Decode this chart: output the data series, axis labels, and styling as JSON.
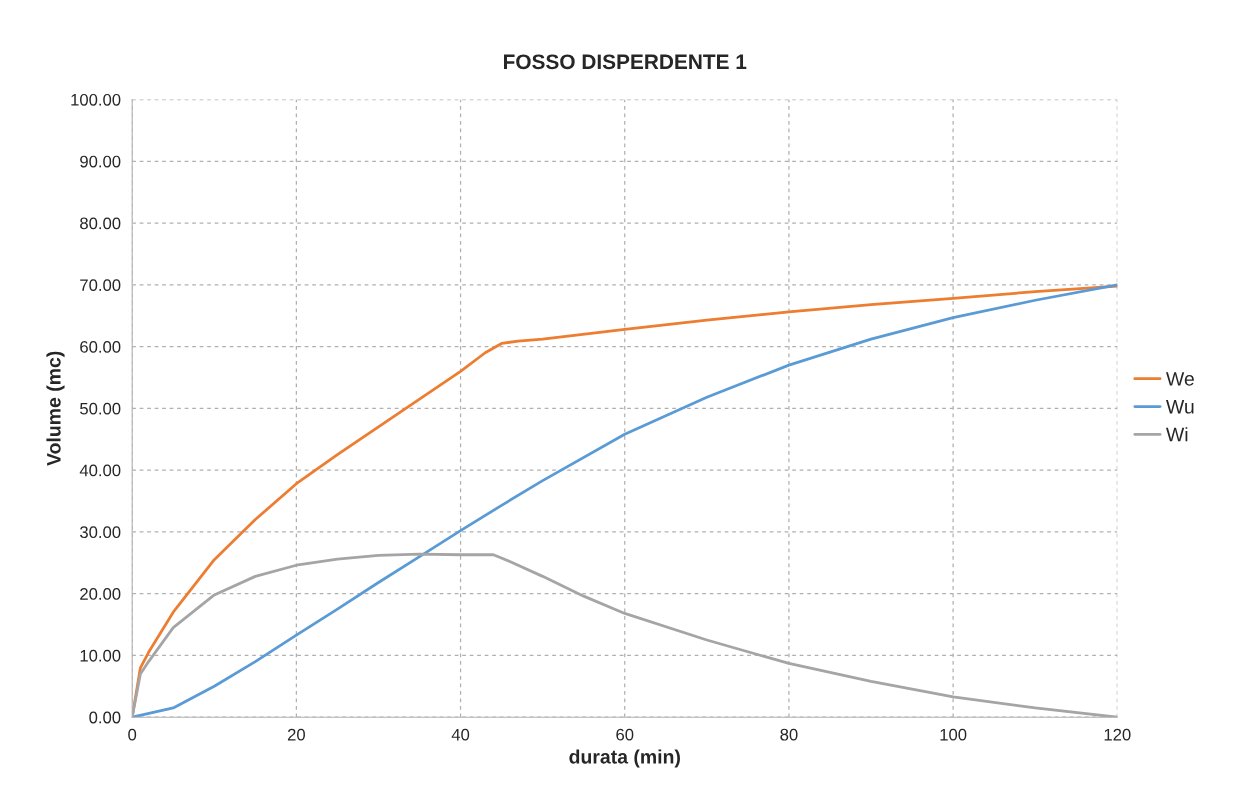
{
  "chart_data": {
    "type": "line",
    "title": "FOSSO DISPERDENTE 1",
    "xlabel": "durata (min)",
    "ylabel": "Volume (mc)",
    "xlim": [
      0,
      120
    ],
    "xticks": [
      0,
      20,
      40,
      60,
      80,
      100,
      120
    ],
    "ylim": [
      0,
      100
    ],
    "yticks": [
      {
        "value": 0,
        "label": "0.00"
      },
      {
        "value": 10,
        "label": "10.00"
      },
      {
        "value": 20,
        "label": "20.00"
      },
      {
        "value": 30,
        "label": "30.00"
      },
      {
        "value": 40,
        "label": "40.00"
      },
      {
        "value": 50,
        "label": "50.00"
      },
      {
        "value": 60,
        "label": "60.00"
      },
      {
        "value": 70,
        "label": "70.00"
      },
      {
        "value": 80,
        "label": "80.00"
      },
      {
        "value": 90,
        "label": "90.00"
      },
      {
        "value": 100,
        "label": "100.00"
      }
    ],
    "grid": true,
    "legend": "right",
    "marker": "none",
    "line_style": "solid",
    "series": [
      {
        "name": "We",
        "color": "#ed7d31",
        "x": [
          0,
          1,
          2,
          5,
          10,
          15,
          20,
          25,
          30,
          35,
          40,
          43,
          45,
          47,
          50,
          60,
          70,
          80,
          90,
          100,
          110,
          120
        ],
        "values": [
          0,
          8,
          10.5,
          17,
          25.5,
          32,
          37.8,
          42.5,
          47,
          51.5,
          56,
          59,
          60.5,
          60.9,
          61.2,
          62.8,
          64.3,
          65.6,
          66.8,
          67.8,
          68.9,
          69.8
        ]
      },
      {
        "name": "Wu",
        "color": "#5b9bd5",
        "x": [
          0,
          5,
          10,
          15,
          20,
          25,
          30,
          35,
          40,
          45,
          50,
          60,
          70,
          80,
          90,
          100,
          110,
          120
        ],
        "values": [
          0,
          1.5,
          5,
          9,
          13.3,
          17.5,
          21.8,
          26,
          30.2,
          34.3,
          38.3,
          45.8,
          51.8,
          57,
          61.2,
          64.7,
          67.5,
          70
        ]
      },
      {
        "name": "Wi",
        "color": "#a5a5a5",
        "x": [
          0,
          1,
          2,
          5,
          10,
          15,
          20,
          25,
          30,
          35,
          40,
          44,
          46,
          50,
          55,
          60,
          70,
          80,
          90,
          100,
          110,
          120
        ],
        "values": [
          0,
          7,
          9,
          14.5,
          19.8,
          22.8,
          24.6,
          25.6,
          26.2,
          26.4,
          26.3,
          26.3,
          25.2,
          22.8,
          19.6,
          16.8,
          12.5,
          8.7,
          5.8,
          3.3,
          1.5,
          0
        ]
      }
    ]
  }
}
